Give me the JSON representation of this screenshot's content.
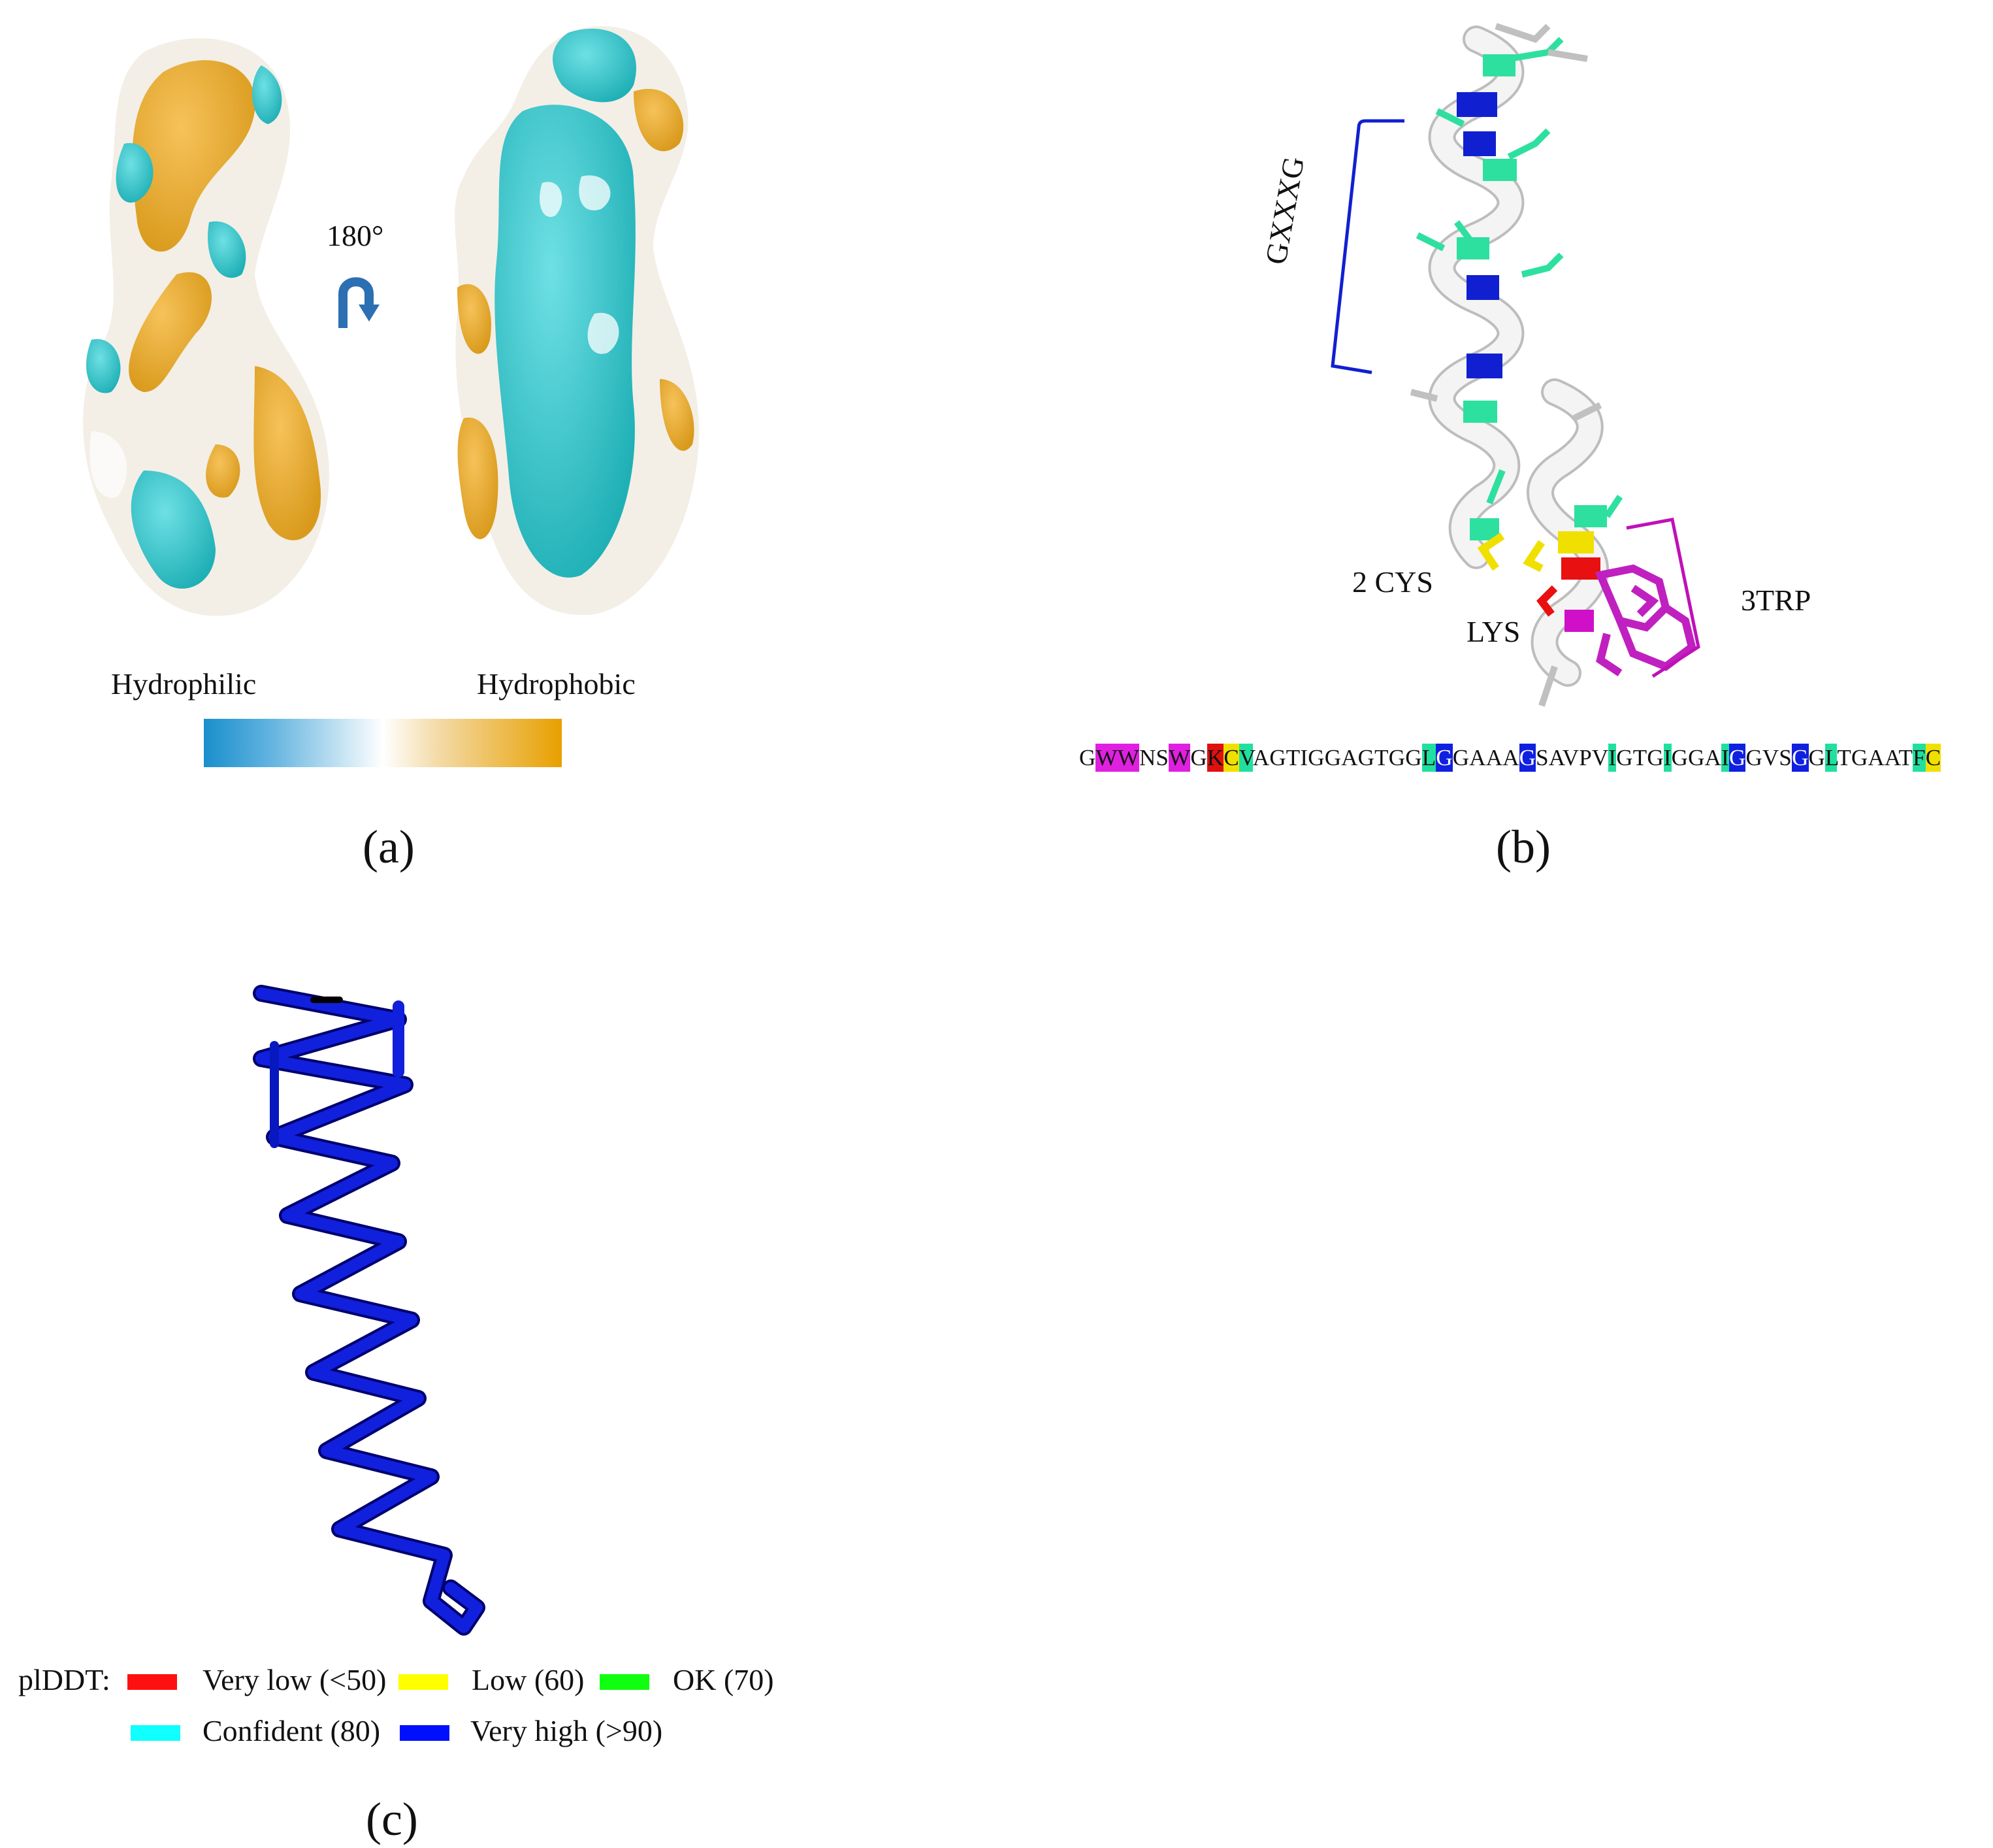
{
  "panel_a": {
    "label": "(a)",
    "rotation_label": "180°",
    "scale_left_label": "Hydrophilic",
    "scale_right_label": "Hydrophobic",
    "colors": {
      "hydrophilic": "#1a8fcc",
      "neutral": "#ffffff",
      "hydrophobic": "#e8a000",
      "surface_cyan": "#2ec4c8"
    }
  },
  "panel_b": {
    "label": "(b)",
    "motif_gxxxg": "GXXXG",
    "label_cys": "2 CYS",
    "label_lys": "LYS",
    "label_trp": "3TRP",
    "sequence": [
      {
        "t": "G",
        "c": ""
      },
      {
        "t": "WW",
        "c": "#e020e0"
      },
      {
        "t": "NS",
        "c": ""
      },
      {
        "t": "W",
        "c": "#e020e0"
      },
      {
        "t": "G",
        "c": ""
      },
      {
        "t": "K",
        "c": "#e01010"
      },
      {
        "t": "C",
        "c": "#f0e000"
      },
      {
        "t": "V",
        "c": "#20e0a0"
      },
      {
        "t": "AGTIGGAGTGG",
        "c": ""
      },
      {
        "t": "L",
        "c": "#20e0a0"
      },
      {
        "t": "G",
        "c": "#1020e0",
        "w": true
      },
      {
        "t": "GAAA",
        "c": ""
      },
      {
        "t": "G",
        "c": "#1020e0",
        "w": true
      },
      {
        "t": "SAVPV",
        "c": ""
      },
      {
        "t": "I",
        "c": "#20e0a0"
      },
      {
        "t": "GTG",
        "c": ""
      },
      {
        "t": "I",
        "c": "#20e0a0"
      },
      {
        "t": "GGA",
        "c": ""
      },
      {
        "t": "I",
        "c": "#20e0a0"
      },
      {
        "t": "G",
        "c": "#1020e0",
        "w": true
      },
      {
        "t": "GVS",
        "c": ""
      },
      {
        "t": "G",
        "c": "#1020e0",
        "w": true
      },
      {
        "t": "G",
        "c": ""
      },
      {
        "t": "L",
        "c": "#20e0a0"
      },
      {
        "t": "TGAAT",
        "c": ""
      },
      {
        "t": "F",
        "c": "#20e0a0"
      },
      {
        "t": "C",
        "c": "#f0e000"
      }
    ]
  },
  "panel_c": {
    "label": "(c)",
    "legend_title": "plDDT:",
    "legend": [
      {
        "label": "Very low (<50)",
        "color": "#ff1010"
      },
      {
        "label": "Low (60)",
        "color": "#ffff00"
      },
      {
        "label": "OK (70)",
        "color": "#10ff10"
      },
      {
        "label": "Confident (80)",
        "color": "#10ffff"
      },
      {
        "label": "Very high (>90)",
        "color": "#0010ff"
      }
    ]
  }
}
